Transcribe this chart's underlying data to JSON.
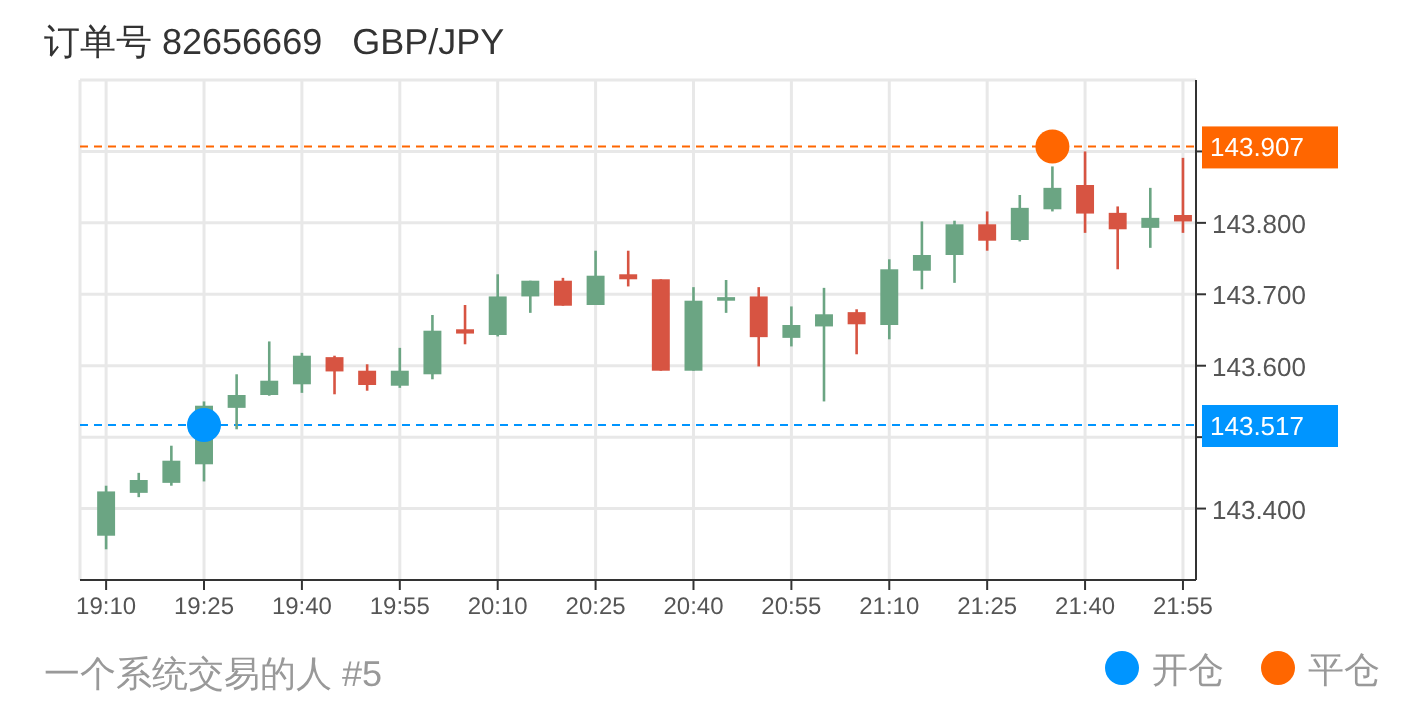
{
  "chart_data": {
    "type": "candlestick",
    "title": "订单号 82656669   GBP/JPY",
    "annotations": [
      "一个系统交易的人 #5"
    ],
    "x": [
      19.1667,
      19.25,
      19.3333,
      19.4167,
      19.5,
      19.5833,
      19.6667,
      19.75,
      19.8333,
      19.9167,
      20.0,
      20.0833,
      20.1667,
      20.25,
      20.3333,
      20.4167,
      20.5,
      20.5833,
      20.6667,
      20.75,
      20.8333,
      20.9167,
      21.0,
      21.0833,
      21.1667,
      21.25,
      21.3333,
      21.4167,
      21.5,
      21.5833,
      21.6667,
      21.75,
      21.8333,
      21.9167
    ],
    "ohlc": [
      [
        143.362,
        143.432,
        143.343,
        143.424
      ],
      [
        143.422,
        143.45,
        143.416,
        143.44
      ],
      [
        143.436,
        143.488,
        143.432,
        143.467
      ],
      [
        143.462,
        143.55,
        143.438,
        143.544
      ],
      [
        143.541,
        143.588,
        143.511,
        143.559
      ],
      [
        143.559,
        143.634,
        143.558,
        143.579
      ],
      [
        143.574,
        143.618,
        143.562,
        143.614
      ],
      [
        143.612,
        143.614,
        143.56,
        143.592
      ],
      [
        143.593,
        143.602,
        143.565,
        143.573
      ],
      [
        143.572,
        143.625,
        143.569,
        143.593
      ],
      [
        143.588,
        143.671,
        143.581,
        143.649
      ],
      [
        143.651,
        143.685,
        143.63,
        143.645
      ],
      [
        143.643,
        143.728,
        143.641,
        143.697
      ],
      [
        143.697,
        143.719,
        143.674,
        143.719
      ],
      [
        143.719,
        143.723,
        143.684,
        143.684
      ],
      [
        143.685,
        143.761,
        143.685,
        143.726
      ],
      [
        143.728,
        143.761,
        143.711,
        143.721
      ],
      [
        143.721,
        143.721,
        143.593,
        143.593
      ],
      [
        143.593,
        143.71,
        143.593,
        143.691
      ],
      [
        143.691,
        143.72,
        143.674,
        143.696
      ],
      [
        143.697,
        143.71,
        143.599,
        143.64
      ],
      [
        143.639,
        143.683,
        143.627,
        143.657
      ],
      [
        143.655,
        143.709,
        143.55,
        143.672
      ],
      [
        143.675,
        143.679,
        143.616,
        143.658
      ],
      [
        143.657,
        143.749,
        143.637,
        143.735
      ],
      [
        143.733,
        143.802,
        143.707,
        143.755
      ],
      [
        143.755,
        143.803,
        143.716,
        143.798
      ],
      [
        143.798,
        143.816,
        143.761,
        143.775
      ],
      [
        143.776,
        143.839,
        143.774,
        143.821
      ],
      [
        143.819,
        143.879,
        143.816,
        143.849
      ],
      [
        143.853,
        143.9,
        143.786,
        143.813
      ],
      [
        143.814,
        143.823,
        143.735,
        143.791
      ],
      [
        143.793,
        143.849,
        143.765,
        143.807
      ],
      [
        143.811,
        143.891,
        143.786,
        143.802
      ]
    ],
    "colors": [
      "#6ba583",
      "#6ba583",
      "#6ba583",
      "#6ba583",
      "#6ba583",
      "#6ba583",
      "#6ba583",
      "#d75442",
      "#d75442",
      "#6ba583",
      "#6ba583",
      "#d75442",
      "#6ba583",
      "#6ba583",
      "#d75442",
      "#6ba583",
      "#d75442",
      "#d75442",
      "#6ba583",
      "#6ba583",
      "#d75442",
      "#6ba583",
      "#6ba583",
      "#d75442",
      "#6ba583",
      "#6ba583",
      "#6ba583",
      "#d75442",
      "#6ba583",
      "#6ba583",
      "#d75442",
      "#d75442",
      "#6ba583",
      "#d75442"
    ],
    "series": [
      {
        "type": "scatter",
        "name": "开仓",
        "color": "#0095ff",
        "x": [
          19.4167
        ],
        "values": [
          143.517
        ]
      },
      {
        "type": "scatter",
        "name": "平仓",
        "color": "#ff6600",
        "x": [
          21.5833
        ],
        "values": [
          143.907
        ]
      }
    ],
    "ref_lines": [
      {
        "axis": "y",
        "value": 143.907,
        "label": "143.907",
        "color": "#ff6600",
        "line_style": "dashed"
      },
      {
        "axis": "y",
        "value": 143.517,
        "label": "143.517",
        "color": "#0095ff",
        "line_style": "dashed"
      }
    ],
    "xlim": [
      19.1,
      21.95
    ],
    "xticks": [
      {
        "value": 19.1667,
        "label": "19:10"
      },
      {
        "value": 19.4167,
        "label": "19:25"
      },
      {
        "value": 19.6667,
        "label": "19:40"
      },
      {
        "value": 19.9167,
        "label": "19:55"
      },
      {
        "value": 20.1667,
        "label": "20:10"
      },
      {
        "value": 20.4167,
        "label": "20:25"
      },
      {
        "value": 20.6667,
        "label": "20:40"
      },
      {
        "value": 20.9167,
        "label": "20:55"
      },
      {
        "value": 21.1667,
        "label": "21:10"
      },
      {
        "value": 21.4167,
        "label": "21:25"
      },
      {
        "value": 21.6667,
        "label": "21:40"
      },
      {
        "value": 21.9167,
        "label": "21:55"
      }
    ],
    "ylim": [
      143.3,
      144.0
    ],
    "yticks": [
      {
        "value": 143.4,
        "label": "143.400"
      },
      {
        "value": 143.5,
        "label": null
      },
      {
        "value": 143.6,
        "label": "143.600"
      },
      {
        "value": 143.7,
        "label": "143.700"
      },
      {
        "value": 143.8,
        "label": "143.800"
      },
      {
        "value": 143.9,
        "label": null
      }
    ],
    "grid": true,
    "marker": "circle",
    "legend": "bottom right"
  }
}
